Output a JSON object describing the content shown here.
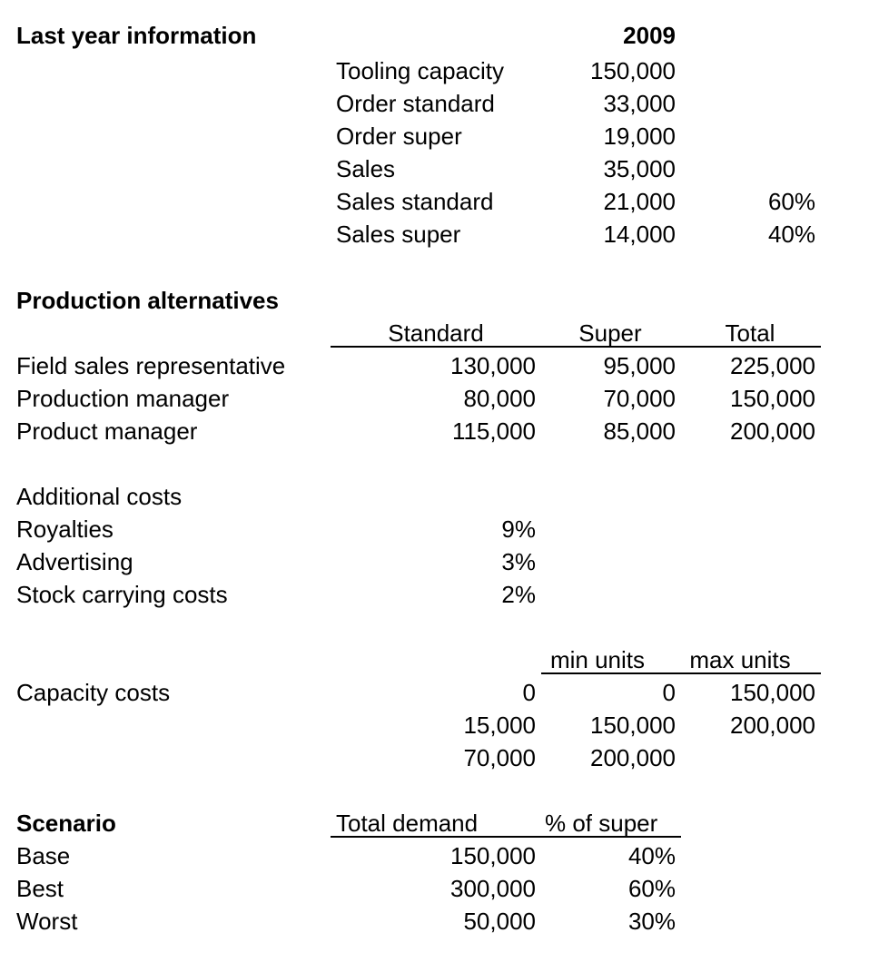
{
  "last_year": {
    "heading": "Last year information",
    "year": "2009",
    "rows": [
      {
        "label": "Tooling capacity",
        "value": "150,000",
        "pct": ""
      },
      {
        "label": "Order standard",
        "value": "33,000",
        "pct": ""
      },
      {
        "label": "Order super",
        "value": "19,000",
        "pct": ""
      },
      {
        "label": "Sales",
        "value": "35,000",
        "pct": ""
      },
      {
        "label": "Sales standard",
        "value": "21,000",
        "pct": "60%"
      },
      {
        "label": "Sales super",
        "value": "14,000",
        "pct": "40%"
      }
    ]
  },
  "production": {
    "heading": "Production alternatives",
    "columns": [
      "Standard",
      "Super",
      "Total"
    ],
    "rows": [
      {
        "label": "Field sales representative",
        "standard": "130,000",
        "super": "95,000",
        "total": "225,000"
      },
      {
        "label": "Production manager",
        "standard": "80,000",
        "super": "70,000",
        "total": "150,000"
      },
      {
        "label": "Product manager",
        "standard": "115,000",
        "super": "85,000",
        "total": "200,000"
      }
    ]
  },
  "additional": {
    "heading": "Additional costs",
    "rows": [
      {
        "label": "Royalties",
        "value": "9%"
      },
      {
        "label": "Advertising",
        "value": "3%"
      },
      {
        "label": "Stock carrying costs",
        "value": "2%"
      }
    ]
  },
  "capacity": {
    "label": "Capacity costs",
    "columns": [
      "min units",
      "max units"
    ],
    "rows": [
      {
        "cost": "0",
        "min": "0",
        "max": "150,000"
      },
      {
        "cost": "15,000",
        "min": "150,000",
        "max": "200,000"
      },
      {
        "cost": "70,000",
        "min": "200,000",
        "max": ""
      }
    ]
  },
  "scenario": {
    "heading": "Scenario",
    "columns": [
      "Total demand",
      "% of super"
    ],
    "rows": [
      {
        "label": "Base",
        "demand": "150,000",
        "super_pct": "40%"
      },
      {
        "label": "Best",
        "demand": "300,000",
        "super_pct": "60%"
      },
      {
        "label": "Worst",
        "demand": "50,000",
        "super_pct": "30%"
      }
    ]
  }
}
